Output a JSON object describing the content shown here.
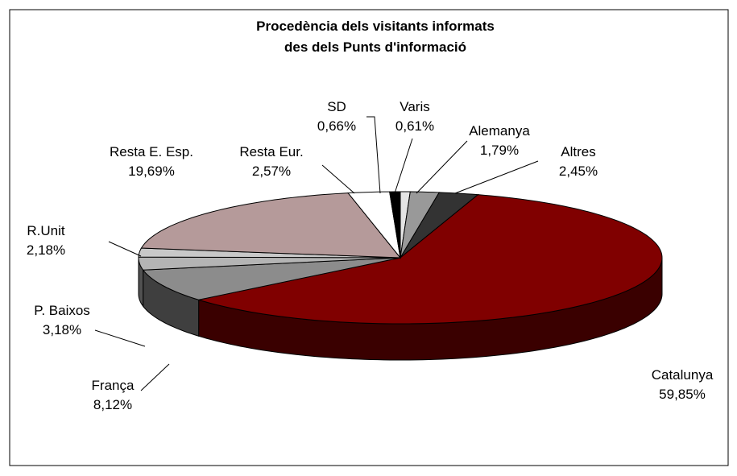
{
  "chart_data": {
    "type": "pie3d",
    "title": [
      "Procedència dels visitants informats",
      "des dels Punts d'informació"
    ],
    "categories": [
      "Varis",
      "Alemanya",
      "Altres",
      "Catalunya",
      "França",
      "P. Baixos",
      "R.Unit",
      "Resta E. Esp.",
      "Resta Eur.",
      "SD"
    ],
    "values": [
      0.61,
      1.79,
      2.45,
      59.85,
      8.12,
      3.18,
      2.18,
      19.69,
      2.57,
      0.66
    ],
    "value_labels": [
      "0,61%",
      "1,79%",
      "2,45%",
      "59,85%",
      "8,12%",
      "3,18%",
      "2,18%",
      "19,69%",
      "2,57%",
      "0,66%"
    ],
    "colors": [
      "#e4e4e4",
      "#999999",
      "#333333",
      "#800000",
      "#8c8c8c",
      "#b4b4b4",
      "#c8c8c8",
      "#b59a9a",
      "#ffffff",
      "#000000"
    ]
  }
}
